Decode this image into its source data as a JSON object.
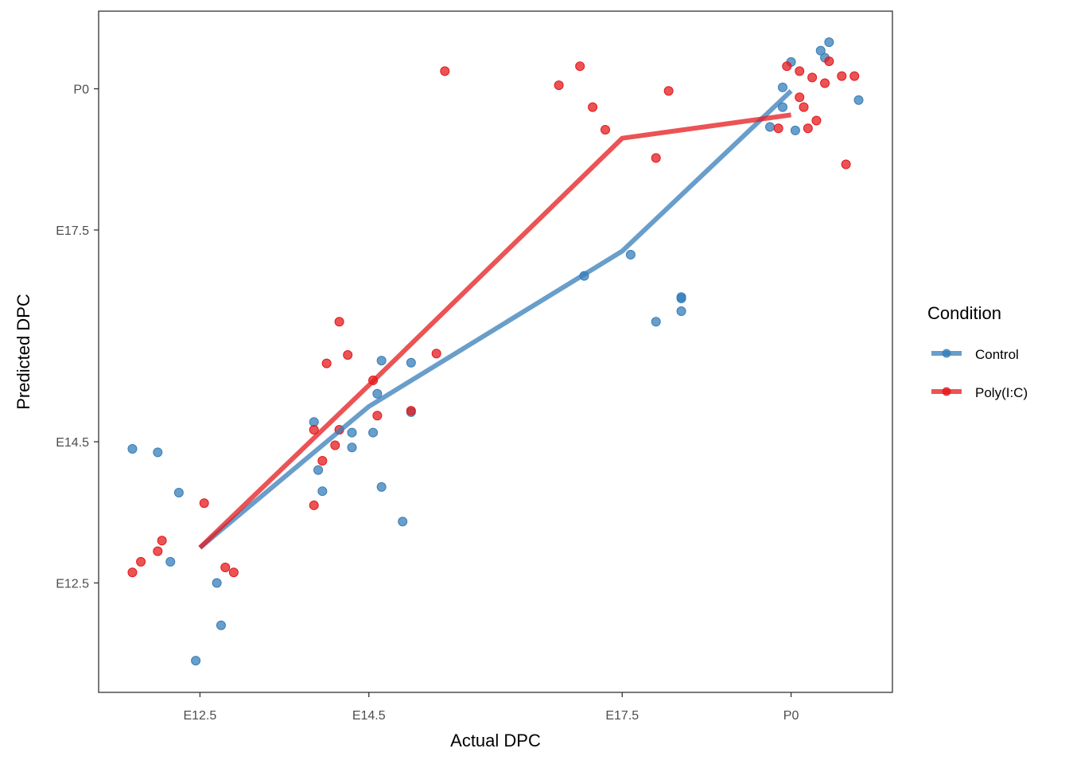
{
  "chart_data": {
    "type": "scatter",
    "xlabel": "Actual DPC",
    "ylabel": "Predicted DPC",
    "x_ticks": [
      {
        "value": 12.5,
        "label": "E12.5"
      },
      {
        "value": 14.5,
        "label": "E14.5"
      },
      {
        "value": 17.5,
        "label": "E17.5"
      },
      {
        "value": 19.5,
        "label": "P0"
      }
    ],
    "y_ticks": [
      {
        "value": 12.5,
        "label": "E12.5"
      },
      {
        "value": 14.5,
        "label": "E14.5"
      },
      {
        "value": 17.5,
        "label": "E17.5"
      },
      {
        "value": 19.5,
        "label": "P0"
      }
    ],
    "xlim": [
      11.3,
      20.7
    ],
    "ylim": [
      10.95,
      20.6
    ],
    "grid": false,
    "legend": {
      "title": "Condition",
      "position": "right"
    },
    "series": [
      {
        "name": "Control",
        "color": "#377EB8",
        "line": [
          [
            12.5,
            13.0
          ],
          [
            14.5,
            15.0
          ],
          [
            17.5,
            17.2
          ],
          [
            19.5,
            19.47
          ]
        ],
        "points": [
          [
            11.7,
            14.4
          ],
          [
            12.0,
            14.35
          ],
          [
            12.25,
            13.78
          ],
          [
            12.15,
            12.8
          ],
          [
            12.7,
            12.5
          ],
          [
            12.45,
            11.4
          ],
          [
            12.75,
            11.9
          ],
          [
            13.85,
            14.78
          ],
          [
            13.9,
            14.1
          ],
          [
            13.95,
            13.8
          ],
          [
            14.3,
            14.63
          ],
          [
            14.3,
            14.42
          ],
          [
            14.55,
            14.63
          ],
          [
            14.6,
            15.18
          ],
          [
            14.65,
            15.65
          ],
          [
            14.65,
            13.86
          ],
          [
            14.9,
            13.37
          ],
          [
            15.0,
            15.62
          ],
          [
            15.0,
            14.92
          ],
          [
            17.05,
            16.85
          ],
          [
            17.6,
            17.15
          ],
          [
            17.9,
            16.2
          ],
          [
            18.2,
            16.53
          ],
          [
            18.2,
            16.35
          ],
          [
            18.2,
            16.55
          ],
          [
            19.25,
            18.96
          ],
          [
            19.4,
            19.24
          ],
          [
            19.4,
            19.52
          ],
          [
            19.5,
            19.88
          ],
          [
            19.55,
            18.91
          ],
          [
            19.85,
            20.04
          ],
          [
            19.9,
            19.94
          ],
          [
            19.95,
            20.16
          ],
          [
            20.3,
            19.34
          ]
        ]
      },
      {
        "name": "Poly(I:C)",
        "color": "#E41A1C",
        "line": [
          [
            12.5,
            13.0
          ],
          [
            14.5,
            15.3
          ],
          [
            17.5,
            18.8
          ],
          [
            19.5,
            19.13
          ]
        ],
        "points": [
          [
            11.7,
            12.65
          ],
          [
            11.8,
            12.8
          ],
          [
            12.0,
            12.95
          ],
          [
            12.05,
            13.1
          ],
          [
            12.55,
            13.63
          ],
          [
            12.8,
            12.72
          ],
          [
            12.9,
            12.65
          ],
          [
            13.85,
            14.67
          ],
          [
            13.85,
            13.6
          ],
          [
            13.95,
            14.23
          ],
          [
            14.0,
            15.61
          ],
          [
            14.1,
            14.45
          ],
          [
            14.15,
            14.67
          ],
          [
            14.15,
            16.2
          ],
          [
            14.25,
            15.73
          ],
          [
            14.55,
            15.37
          ],
          [
            14.6,
            14.87
          ],
          [
            15.0,
            14.94
          ],
          [
            15.3,
            15.75
          ],
          [
            15.4,
            19.75
          ],
          [
            16.75,
            19.55
          ],
          [
            17.0,
            19.82
          ],
          [
            17.15,
            19.24
          ],
          [
            17.3,
            18.92
          ],
          [
            17.9,
            18.52
          ],
          [
            18.05,
            19.47
          ],
          [
            19.35,
            18.94
          ],
          [
            19.45,
            19.82
          ],
          [
            19.6,
            19.38
          ],
          [
            19.6,
            19.75
          ],
          [
            19.65,
            19.24
          ],
          [
            19.7,
            18.94
          ],
          [
            19.75,
            19.66
          ],
          [
            19.8,
            19.05
          ],
          [
            19.9,
            19.58
          ],
          [
            19.95,
            19.89
          ],
          [
            20.1,
            19.68
          ],
          [
            20.15,
            18.43
          ],
          [
            20.25,
            19.68
          ]
        ]
      }
    ]
  }
}
